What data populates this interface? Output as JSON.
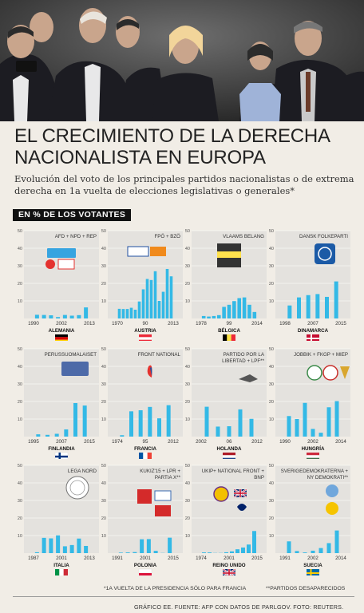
{
  "header": {
    "title": "EL CRECIMIENTO DE LA DERECHA NACIONALISTA EN EUROPA",
    "subtitle": "Evolución del voto de los principales partidos nacionalistas o de extrema derecha en 1a vuelta de elecciones legislativas o generales*",
    "tag": "EN % DE LOS VOTANTES"
  },
  "footer": {
    "note1": "*1A VUELTA DE LA PRESIDENCIA SÓLO PARA FRANCIA",
    "note2": "**PARTIDOS DESAPARECIDOS",
    "credit": "GRÁFICO EE. FUENTE: AFP CON DATOS DE PARLGOV. FOTO: REUTERS."
  },
  "colors": {
    "bar": "#33b9e6",
    "grid": "#ffffff",
    "panel": "#e4e2de",
    "text": "#222222"
  },
  "chart_data": [
    {
      "type": "bar",
      "country": "ALEMANIA",
      "party": "AFD + NPD + REP",
      "flag": "de",
      "ylim": [
        0,
        50
      ],
      "yticks": [
        0,
        10,
        20,
        30,
        40,
        50
      ],
      "xticklabels": [
        "1990",
        "2002",
        "2013"
      ],
      "values": [
        2.1,
        2.0,
        1.8,
        0.8,
        2.0,
        1.6,
        1.9,
        6.3
      ],
      "logos": [
        "Alternative für Deutschland",
        "NPD",
        "REP"
      ]
    },
    {
      "type": "bar",
      "country": "AUSTRIA",
      "party": "FPÖ + BZÖ",
      "flag": "at",
      "ylim": [
        0,
        50
      ],
      "yticks": [
        0,
        10,
        20,
        30,
        40,
        50
      ],
      "xticklabels": [
        "1970",
        "90",
        "2013"
      ],
      "values": [
        5.5,
        5.4,
        5.4,
        6.1,
        5.0,
        9.7,
        16.6,
        22.5,
        21.9,
        26.9,
        10.0,
        15.2,
        28.2,
        24.0
      ],
      "logos": [
        "FPÖ",
        "BZÖ"
      ]
    },
    {
      "type": "bar",
      "country": "BÉLGICA",
      "party": "VLAAMS BELANG",
      "flag": "be",
      "ylim": [
        0,
        50
      ],
      "yticks": [
        0,
        10,
        20,
        30,
        40,
        50
      ],
      "xticklabels": [
        "1978",
        "99",
        "2014"
      ],
      "values": [
        1.4,
        1.1,
        1.4,
        1.9,
        6.6,
        7.8,
        9.9,
        11.6,
        12.0,
        7.8,
        3.7
      ],
      "logos": [
        "VLAAMS BELANG"
      ]
    },
    {
      "type": "bar",
      "country": "DINAMARCA",
      "party": "DANSK FOLKEPARTI",
      "flag": "dk",
      "ylim": [
        0,
        50
      ],
      "yticks": [
        0,
        10,
        20,
        30,
        40,
        50
      ],
      "xticklabels": [
        "1998",
        "2007",
        "2015"
      ],
      "values": [
        7.4,
        12.0,
        13.3,
        13.9,
        12.3,
        21.1
      ],
      "logos": [
        "DF"
      ]
    },
    {
      "type": "bar",
      "country": "FINLANDIA",
      "party": "PERUSSUOMALAISET",
      "flag": "fi",
      "ylim": [
        0,
        50
      ],
      "yticks": [
        0,
        10,
        20,
        30,
        40,
        50
      ],
      "xticklabels": [
        "1995",
        "2007",
        "2015"
      ],
      "values": [
        1.3,
        1.0,
        1.6,
        4.1,
        19.1,
        17.7
      ],
      "logos": [
        "Perus"
      ]
    },
    {
      "type": "bar",
      "country": "FRANCIA",
      "party": "FRONT NATIONAL",
      "flag": "fr",
      "ylim": [
        0,
        50
      ],
      "yticks": [
        0,
        10,
        20,
        30,
        40,
        50
      ],
      "xticklabels": [
        "1974",
        "95",
        "2012"
      ],
      "values": [
        0.8,
        14.4,
        15.0,
        16.9,
        10.4,
        17.9
      ],
      "logos": [
        "Front National"
      ]
    },
    {
      "type": "bar",
      "country": "HOLANDA",
      "party": "PARTIDO POR LA LIBERTAD + LPF**",
      "flag": "nl",
      "ylim": [
        0,
        50
      ],
      "yticks": [
        0,
        10,
        20,
        30,
        40,
        50
      ],
      "xticklabels": [
        "2002",
        "06",
        "2012"
      ],
      "values": [
        17.0,
        5.7,
        5.9,
        15.5,
        10.1
      ],
      "logos": [
        "PVV"
      ]
    },
    {
      "type": "bar",
      "country": "HUNGRÍA",
      "party": "JOBBIK + FKGP + MIEP",
      "flag": "hu",
      "ylim": [
        0,
        50
      ],
      "yticks": [
        0,
        10,
        20,
        30,
        40,
        50
      ],
      "xticklabels": [
        "1990",
        "2002",
        "2014"
      ],
      "values": [
        11.7,
        10.0,
        19.2,
        4.4,
        2.2,
        16.7,
        20.2
      ],
      "logos": [
        "Jobbik",
        "FKGP",
        "MIEP"
      ]
    },
    {
      "type": "bar",
      "country": "ITALIA",
      "party": "LEGA NORD",
      "flag": "it",
      "ylim": [
        0,
        50
      ],
      "yticks": [
        0,
        10,
        20,
        30,
        40,
        50
      ],
      "xticklabels": [
        "1987",
        "2001",
        "2013"
      ],
      "values": [
        0.5,
        8.7,
        8.4,
        10.1,
        3.9,
        4.6,
        8.3,
        4.1
      ],
      "logos": [
        "Lega Nord"
      ]
    },
    {
      "type": "bar",
      "country": "POLONIA",
      "party": "KUKIZ'15 + LPR + PARTIA X**",
      "flag": "pl",
      "ylim": [
        0,
        50
      ],
      "yticks": [
        0,
        10,
        20,
        30,
        40,
        50
      ],
      "xticklabels": [
        "1991",
        "2001",
        "2015"
      ],
      "values": [
        0.3,
        0.4,
        0.6,
        7.9,
        8.0,
        1.3,
        0.1,
        8.8
      ],
      "logos": [
        "Kukiz",
        "LPR",
        "Partia X"
      ]
    },
    {
      "type": "bar",
      "country": "REINO UNIDO",
      "party": "UKIP+ NATIONAL FRONT + BNP",
      "flag": "gb",
      "ylim": [
        0,
        50
      ],
      "yticks": [
        0,
        10,
        20,
        30,
        40,
        50
      ],
      "xticklabels": [
        "1974",
        "2001",
        "2015"
      ],
      "values": [
        0.4,
        0.4,
        0.1,
        0.1,
        0.5,
        1.0,
        2.2,
        3.2,
        4.9,
        12.6
      ],
      "logos": [
        "UKIP",
        "NF",
        "BNP"
      ]
    },
    {
      "type": "bar",
      "country": "SUECIA",
      "party": "SVERIGEDEMOKRATERNA + NY DEMOKRATI**",
      "flag": "se",
      "ylim": [
        0,
        50
      ],
      "yticks": [
        0,
        10,
        20,
        30,
        40,
        50
      ],
      "xticklabels": [
        "1991",
        "2002",
        "2014"
      ],
      "values": [
        6.7,
        1.2,
        0.4,
        1.4,
        2.9,
        5.7,
        12.9
      ],
      "logos": [
        "SD",
        "NyD"
      ]
    }
  ]
}
